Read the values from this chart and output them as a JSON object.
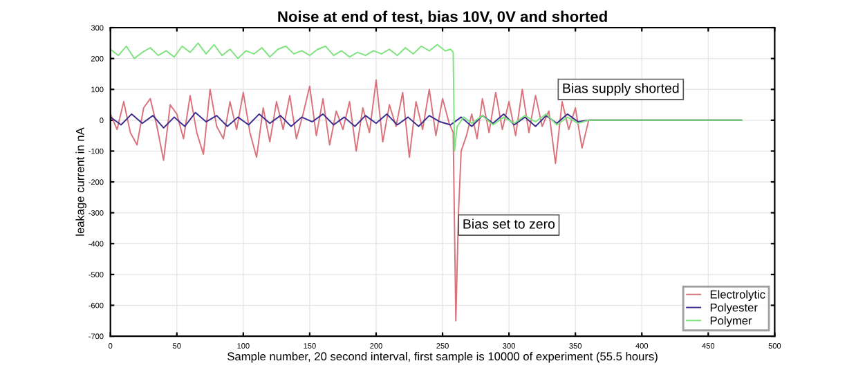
{
  "chart_data": {
    "type": "line",
    "title": "Noise at end of test, bias 10V, 0V and shorted",
    "xlabel": "Sample number, 20 second interval, first sample is 10000 of experiment (55.5 hours)",
    "ylabel": "leakage current in nA",
    "xlim": [
      0,
      500
    ],
    "xticks": [
      0,
      50,
      100,
      150,
      200,
      250,
      300,
      350,
      400,
      450,
      500
    ],
    "ylim": [
      -700,
      300
    ],
    "yticks": [
      -700,
      -600,
      -500,
      -400,
      -300,
      -200,
      -100,
      0,
      100,
      200,
      300
    ],
    "grid": true,
    "legend": "bottom right",
    "line_style": "solid",
    "marker": "none",
    "annotations": [
      "Bias supply shorted",
      "Bias set to zero"
    ],
    "series": [
      {
        "name": "Electrolytic",
        "color": "#d9727a",
        "x": [
          0,
          5,
          10,
          15,
          20,
          25,
          30,
          35,
          40,
          45,
          50,
          55,
          60,
          65,
          70,
          75,
          80,
          85,
          90,
          95,
          100,
          105,
          110,
          115,
          120,
          125,
          130,
          135,
          140,
          145,
          150,
          155,
          160,
          165,
          170,
          175,
          180,
          185,
          190,
          195,
          200,
          205,
          210,
          215,
          220,
          225,
          230,
          235,
          240,
          245,
          250,
          255,
          258,
          260,
          262,
          264,
          268,
          272,
          276,
          280,
          285,
          290,
          295,
          300,
          305,
          310,
          315,
          320,
          325,
          330,
          335,
          340,
          345,
          350,
          355,
          360,
          475
        ],
        "values": [
          20,
          -30,
          60,
          -40,
          -80,
          40,
          70,
          -20,
          -130,
          50,
          20,
          -60,
          80,
          -40,
          -110,
          100,
          -20,
          -60,
          60,
          -30,
          90,
          -40,
          -120,
          40,
          -70,
          60,
          -30,
          80,
          -60,
          20,
          110,
          -50,
          70,
          -80,
          30,
          -30,
          60,
          -100,
          40,
          -40,
          130,
          -70,
          50,
          -20,
          90,
          -120,
          60,
          -30,
          100,
          -50,
          70,
          -10,
          -40,
          -650,
          -300,
          -100,
          -50,
          20,
          -60,
          70,
          -40,
          90,
          -30,
          60,
          -50,
          100,
          -40,
          80,
          -20,
          30,
          -140,
          60,
          -30,
          40,
          -90,
          0,
          0
        ]
      },
      {
        "name": "Polyester",
        "color": "#3b2d8f",
        "x": [
          0,
          8,
          16,
          24,
          32,
          40,
          48,
          56,
          64,
          72,
          80,
          88,
          96,
          104,
          112,
          120,
          128,
          136,
          144,
          152,
          160,
          168,
          176,
          184,
          192,
          200,
          208,
          216,
          224,
          232,
          240,
          248,
          256,
          264,
          272,
          280,
          288,
          296,
          304,
          312,
          320,
          328,
          336,
          344,
          352,
          360,
          475
        ],
        "values": [
          10,
          -15,
          20,
          -10,
          15,
          -25,
          10,
          -20,
          25,
          -5,
          15,
          -20,
          10,
          -15,
          20,
          -10,
          15,
          -20,
          10,
          -5,
          20,
          -15,
          10,
          -20,
          15,
          -10,
          20,
          -15,
          10,
          -20,
          15,
          -5,
          -15,
          10,
          -20,
          15,
          -10,
          20,
          -15,
          10,
          -20,
          15,
          -10,
          20,
          -5,
          0,
          0
        ]
      },
      {
        "name": "Polymer",
        "color": "#7ee37e",
        "x": [
          0,
          6,
          12,
          18,
          24,
          30,
          36,
          42,
          48,
          54,
          60,
          66,
          72,
          78,
          84,
          90,
          96,
          102,
          108,
          114,
          120,
          126,
          132,
          138,
          144,
          150,
          156,
          162,
          168,
          174,
          180,
          186,
          192,
          198,
          204,
          210,
          216,
          222,
          228,
          234,
          240,
          246,
          252,
          256,
          258,
          259,
          261,
          266,
          272,
          280,
          288,
          296,
          304,
          312,
          320,
          328,
          336,
          344,
          352,
          360,
          475
        ],
        "values": [
          230,
          210,
          240,
          200,
          220,
          235,
          210,
          225,
          205,
          240,
          220,
          250,
          215,
          245,
          210,
          230,
          200,
          225,
          215,
          235,
          205,
          230,
          240,
          215,
          225,
          210,
          230,
          240,
          210,
          225,
          205,
          220,
          210,
          225,
          215,
          230,
          210,
          235,
          215,
          240,
          225,
          245,
          225,
          230,
          220,
          -100,
          -20,
          10,
          -10,
          15,
          -15,
          10,
          -10,
          15,
          -5,
          20,
          -15,
          10,
          -10,
          0,
          0
        ]
      }
    ]
  }
}
